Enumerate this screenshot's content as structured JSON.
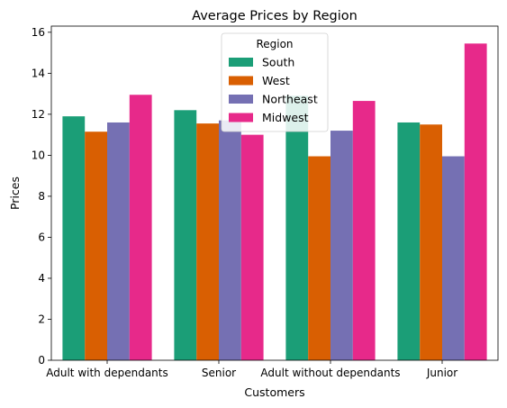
{
  "chart_data": {
    "type": "bar",
    "title": "Average Prices by Region",
    "xlabel": "Customers",
    "ylabel": "Prices",
    "categories": [
      "Adult with dependants",
      "Senior",
      "Adult without dependants",
      "Junior"
    ],
    "series": [
      {
        "name": "South",
        "color": "#1b9e77",
        "values": [
          11.9,
          12.2,
          12.9,
          11.6
        ]
      },
      {
        "name": "West",
        "color": "#d95f02",
        "values": [
          11.15,
          11.55,
          9.95,
          11.5
        ]
      },
      {
        "name": "Northeast",
        "color": "#7570b3",
        "values": [
          11.6,
          11.7,
          11.2,
          9.95
        ]
      },
      {
        "name": "Midwest",
        "color": "#e7298a",
        "values": [
          12.95,
          11.0,
          12.65,
          15.45
        ]
      }
    ],
    "ylim": [
      0,
      16.3
    ],
    "yticks": [
      0,
      2,
      4,
      6,
      8,
      10,
      12,
      14,
      16
    ],
    "legend": {
      "title": "Region",
      "placement": "top-center"
    },
    "grid": false
  }
}
